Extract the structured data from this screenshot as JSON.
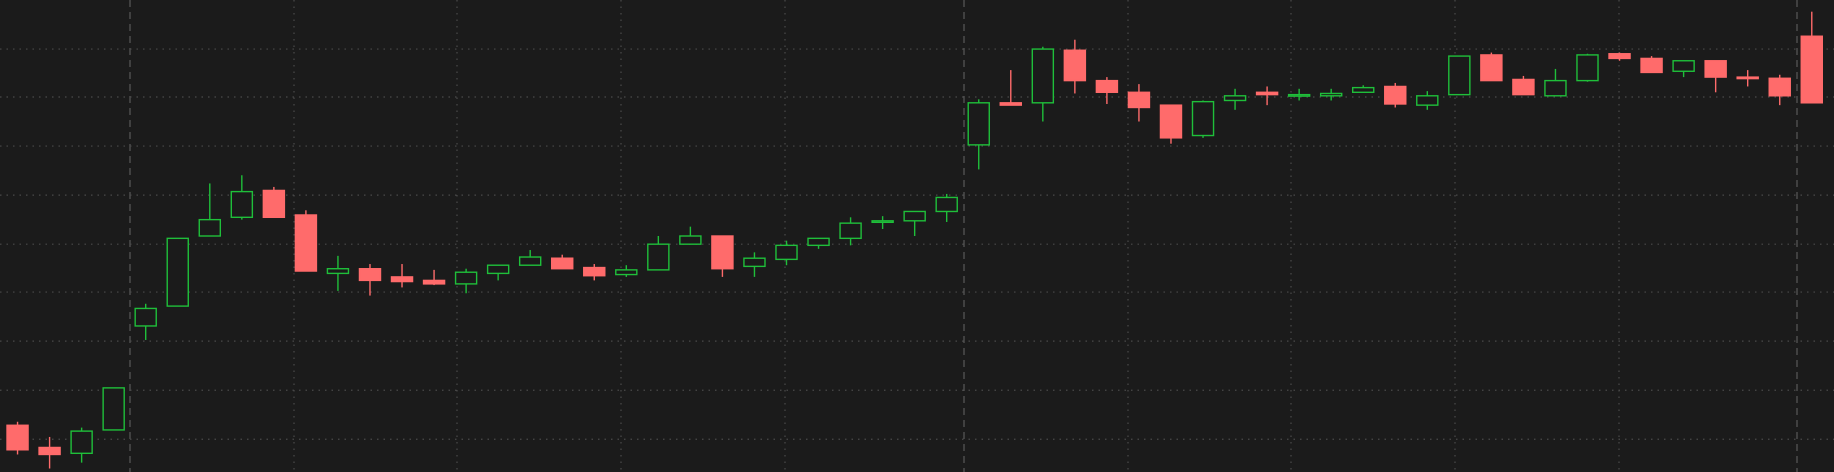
{
  "chart_data": {
    "type": "candlestick",
    "open": [
      40,
      21,
      16,
      36,
      125,
      142,
      202,
      218,
      241,
      220,
      170,
      174,
      167,
      164,
      161,
      170,
      177,
      183,
      175,
      169,
      173,
      195,
      202,
      176,
      182,
      194,
      200,
      214,
      215,
      223,
      280,
      316,
      316,
      361,
      335,
      325,
      314,
      288,
      318,
      325,
      322,
      322,
      325,
      330,
      314,
      323,
      357,
      336,
      322,
      335,
      358,
      354,
      343,
      352,
      338,
      337,
      373
    ],
    "high": [
      43,
      30,
      38,
      72,
      144,
      200,
      247,
      254,
      244,
      224,
      185,
      178,
      178,
      173,
      174,
      177,
      190,
      186,
      178,
      177,
      202,
      210,
      202,
      188,
      198,
      200,
      218,
      219,
      223,
      238,
      319,
      344,
      364,
      370,
      338,
      332,
      314,
      318,
      328,
      330,
      328,
      328,
      331,
      333,
      326,
      356,
      359,
      339,
      345,
      358,
      359,
      356,
      352,
      352,
      344,
      340,
      394
    ],
    "low": [
      15,
      3,
      8,
      36,
      113,
      142,
      202,
      216,
      218,
      172,
      155,
      151,
      158,
      160,
      153,
      164,
      177,
      174,
      164,
      167,
      173,
      195,
      167,
      167,
      177,
      191,
      194,
      208,
      202,
      214,
      259,
      314,
      300,
      324,
      315,
      300,
      281,
      286,
      310,
      314,
      318,
      318,
      325,
      312,
      310,
      323,
      335,
      323,
      322,
      334,
      352,
      342,
      338,
      325,
      330,
      314,
      316
    ],
    "close": [
      19,
      15,
      35,
      72,
      140,
      200,
      216,
      240,
      218,
      172,
      174,
      164,
      163,
      161,
      171,
      177,
      184,
      174,
      168,
      173,
      195,
      202,
      174,
      183,
      194,
      200,
      213,
      215,
      223,
      235,
      316,
      314,
      362,
      335,
      325,
      312,
      286,
      317,
      322,
      323,
      323,
      324,
      329,
      315,
      322,
      356,
      335,
      323,
      335,
      357,
      354,
      342,
      352,
      338,
      337,
      322,
      316
    ],
    "up_color": "#1fbf3a",
    "down_color": "#ff6b6b",
    "ylim": [
      0,
      404
    ],
    "yticks": [
      28,
      70,
      112,
      154,
      195,
      237,
      279,
      321,
      362
    ],
    "grid": true
  }
}
